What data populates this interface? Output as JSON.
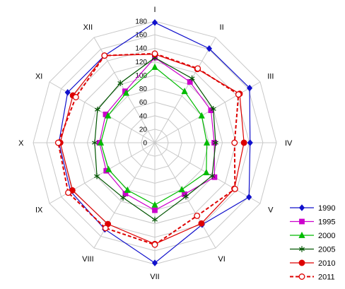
{
  "chart_data": {
    "type": "radar",
    "title": "",
    "axes": [
      "I",
      "II",
      "III",
      "IV",
      "V",
      "VI",
      "VII",
      "VIII",
      "IX",
      "X",
      "XI",
      "XII"
    ],
    "rlim": [
      0,
      180
    ],
    "ticks": [
      0,
      20,
      40,
      60,
      80,
      100,
      120,
      140,
      160,
      180
    ],
    "tick_labels": [
      "0",
      "20",
      "40",
      "60",
      "80",
      "100",
      "120",
      "140",
      "160",
      "180"
    ],
    "grid": true,
    "legend_position": "bottom-right",
    "series": [
      {
        "name": "1990",
        "color": "#1111cc",
        "marker": "diamond",
        "dashed": false,
        "fill": "solid",
        "values": [
          178,
          161,
          162,
          141,
          161,
          140,
          178,
          148,
          144,
          142,
          149,
          149
        ]
      },
      {
        "name": "1995",
        "color": "#cc00cc",
        "marker": "square",
        "dashed": false,
        "fill": "solid",
        "values": [
          126,
          104,
          96,
          88,
          102,
          88,
          100,
          87,
          83,
          82,
          84,
          88
        ]
      },
      {
        "name": "2000",
        "color": "#00bb00",
        "marker": "triangle",
        "dashed": false,
        "fill": "solid",
        "values": [
          112,
          88,
          80,
          77,
          88,
          80,
          92,
          81,
          79,
          80,
          80,
          85
        ]
      },
      {
        "name": "2005",
        "color": "#005500",
        "marker": "star",
        "dashed": false,
        "fill": "none",
        "values": [
          126,
          110,
          100,
          90,
          98,
          92,
          114,
          94,
          99,
          89,
          98,
          102
        ]
      },
      {
        "name": "2010",
        "color": "#dd0000",
        "marker": "circle",
        "dashed": false,
        "fill": "solid",
        "values": [
          131,
          126,
          145,
          132,
          136,
          138,
          150,
          139,
          141,
          140,
          140,
          149
        ]
      },
      {
        "name": "2011",
        "color": "#dd0000",
        "marker": "circle",
        "dashed": true,
        "fill": "open",
        "values": [
          132,
          127,
          143,
          118,
          137,
          125,
          151,
          146,
          148,
          143,
          135,
          149
        ]
      }
    ]
  }
}
